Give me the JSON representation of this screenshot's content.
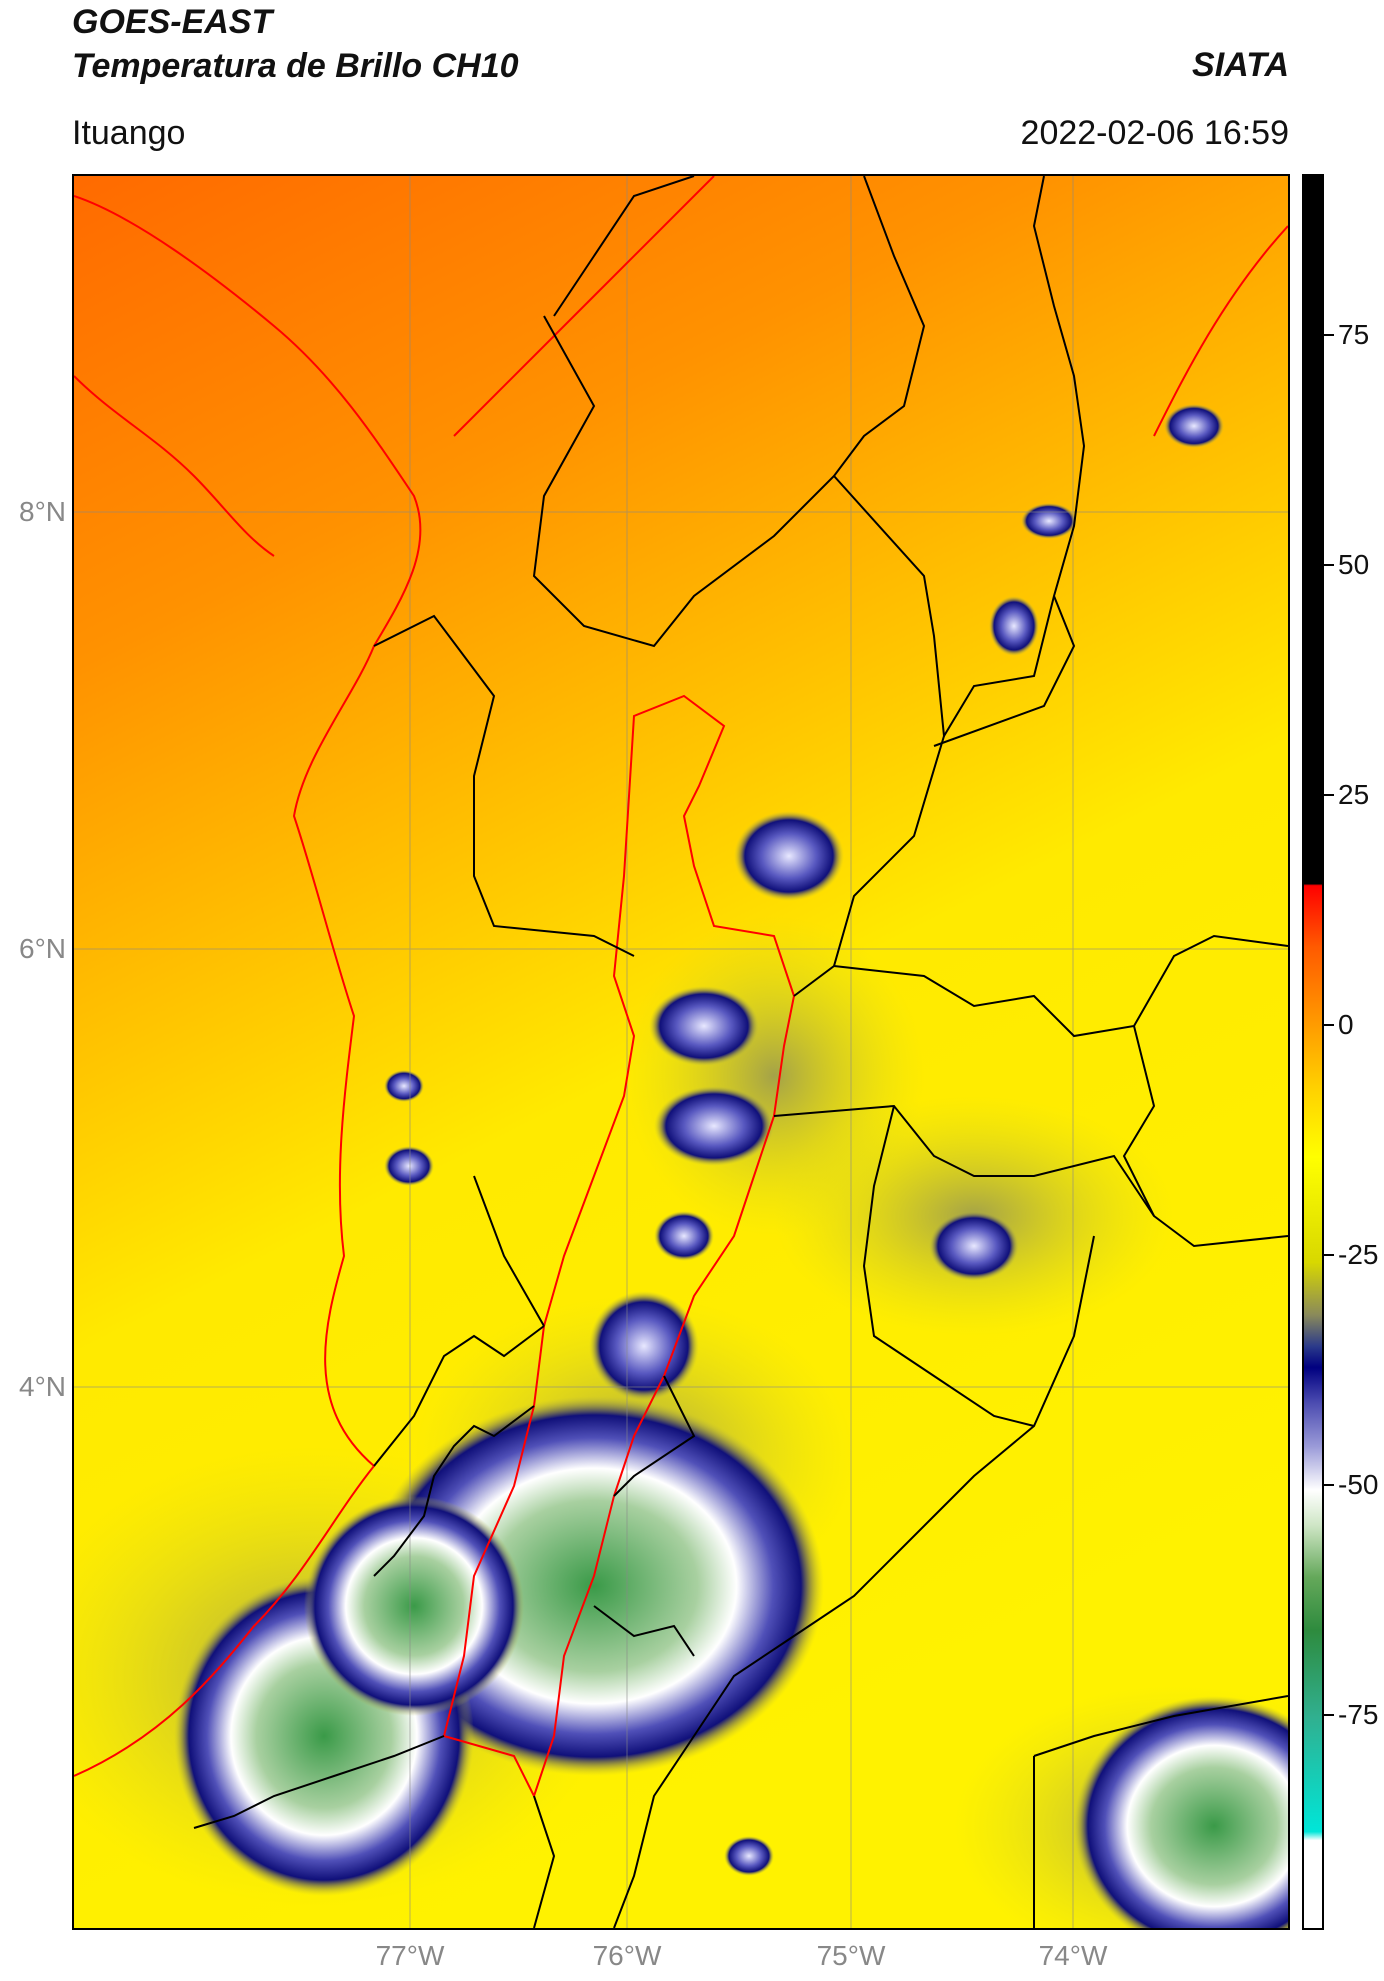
{
  "header": {
    "satellite": "GOES-EAST",
    "product": "Temperatura de Brillo CH10",
    "organization": "SIATA",
    "region": "Ituango",
    "datetime": "2022-02-06 16:59"
  },
  "map": {
    "lat_labels": [
      "8°N",
      "6°N",
      "4°N"
    ],
    "lon_labels": [
      "77°W",
      "76°W",
      "75°W",
      "74°W"
    ],
    "gridlines": true,
    "border_colors": {
      "country_and_department": "#000000",
      "highlight_region": "#ff0000"
    }
  },
  "colorbar": {
    "ticks": [
      "75",
      "50",
      "25",
      "0",
      "-25",
      "-50",
      "-75"
    ],
    "colors": [
      "#000000",
      "#ff0000",
      "#ff9500",
      "#ffff00",
      "#000080",
      "#ffffff",
      "#2e8b3e",
      "#00e6d8"
    ],
    "position": "right"
  }
}
